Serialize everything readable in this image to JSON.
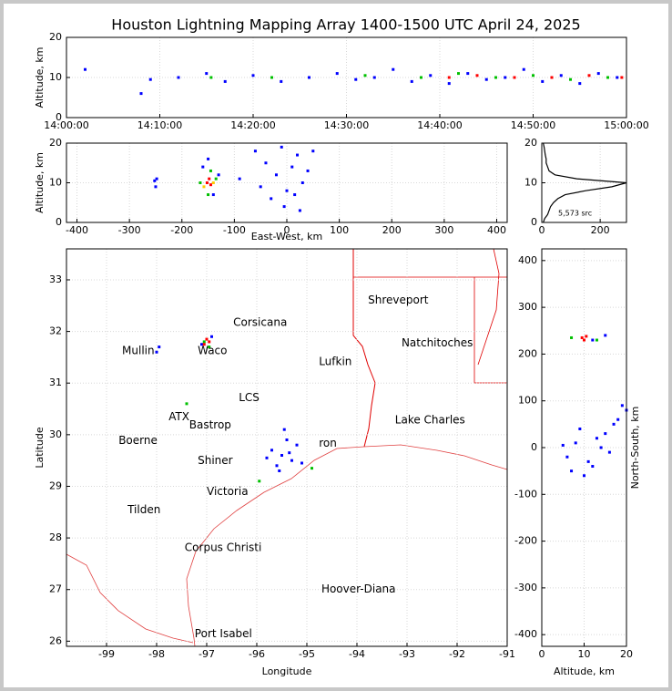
{
  "title": "Houston Lightning Mapping Array 1400-1500 UTC April 24, 2025",
  "chart_data": [
    {
      "type": "scatter",
      "xlim": [
        0,
        60
      ],
      "ylim": [
        0,
        20
      ],
      "xticks": [
        {
          "value": 0,
          "label": "14:00:00"
        },
        {
          "value": 10,
          "label": "14:10:00"
        },
        {
          "value": 20,
          "label": "14:20:00"
        },
        {
          "value": 30,
          "label": "14:30:00"
        },
        {
          "value": 40,
          "label": "14:40:00"
        },
        {
          "value": 50,
          "label": "14:50:00"
        },
        {
          "value": 60,
          "label": "15:00:00"
        }
      ],
      "yticks": [
        0,
        10,
        20
      ],
      "ylabel": "Altitude, km",
      "grid": true,
      "series": [
        {
          "color": "#0000ff",
          "x": [
            2,
            8,
            9,
            12,
            15,
            17,
            20,
            23,
            26,
            29,
            31,
            33,
            35,
            37,
            39,
            41,
            43,
            45,
            47,
            49,
            51,
            53,
            55,
            57,
            59
          ],
          "y": [
            12,
            6,
            9.5,
            10,
            11,
            9,
            10.5,
            9,
            10,
            11,
            9.5,
            10,
            12,
            9,
            10.5,
            8.5,
            11,
            9.5,
            10,
            12,
            9,
            10.5,
            8.5,
            11,
            10
          ]
        },
        {
          "color": "#00c000",
          "x": [
            15.5,
            22,
            32,
            38,
            42,
            46,
            50,
            54,
            58
          ],
          "y": [
            10,
            10,
            10.5,
            10,
            11,
            10,
            10.5,
            9.5,
            10
          ]
        },
        {
          "color": "#ff0000",
          "x": [
            41,
            44,
            48,
            52,
            56,
            59.5
          ],
          "y": [
            10,
            10.5,
            10,
            10,
            10.5,
            10
          ]
        }
      ]
    },
    {
      "type": "scatter",
      "xlim": [
        -420,
        420
      ],
      "ylim": [
        0,
        20
      ],
      "xticks": [
        -400,
        -300,
        -200,
        -100,
        0,
        100,
        200,
        300,
        400
      ],
      "yticks": [
        0,
        10,
        20
      ],
      "xlabel": "East-West, km",
      "ylabel": "Altitude, km",
      "grid": true,
      "series": [
        {
          "color": "#0000ff",
          "x": [
            -250,
            -252,
            -248,
            -160,
            -140,
            -150,
            -130,
            -90,
            -60,
            -40,
            -20,
            -10,
            0,
            10,
            20,
            30,
            40,
            -30,
            -5,
            50,
            -50,
            15,
            25
          ],
          "y": [
            9,
            10.5,
            11,
            14,
            7,
            16,
            12,
            11,
            18,
            15,
            12,
            19,
            8,
            14,
            17,
            10,
            13,
            6,
            4,
            18,
            9,
            7,
            3
          ]
        },
        {
          "color": "#00c000",
          "x": [
            -165,
            -135,
            -150,
            -145
          ],
          "y": [
            10,
            11,
            7,
            13
          ]
        },
        {
          "color": "#ffcc00",
          "x": [
            -158,
            -140
          ],
          "y": [
            9,
            10
          ]
        },
        {
          "color": "#ff0000",
          "x": [
            -152,
            -148,
            -145
          ],
          "y": [
            10,
            11,
            9.5
          ]
        }
      ]
    },
    {
      "type": "line",
      "xlim": [
        0,
        290
      ],
      "ylim": [
        0,
        20
      ],
      "xticks": [
        0,
        200
      ],
      "yticks": [
        0,
        10,
        20
      ],
      "annotation": "5,573 src",
      "grid": true,
      "color": "#000000",
      "x": [
        5,
        10,
        20,
        25,
        30,
        40,
        55,
        80,
        150,
        240,
        290,
        120,
        45,
        25,
        20,
        15,
        15,
        12,
        10,
        8,
        5
      ],
      "y": [
        0,
        1,
        2,
        3,
        4,
        5,
        6,
        7,
        8,
        9,
        10,
        11,
        12,
        13,
        14,
        15,
        16,
        17,
        18,
        19,
        20
      ]
    },
    {
      "type": "map",
      "xlim": [
        -99.8,
        -91
      ],
      "ylim": [
        25.9,
        33.6
      ],
      "xticks": [
        -99,
        -98,
        -97,
        -96,
        -95,
        -94,
        -93,
        -92,
        -91
      ],
      "yticks": [
        26,
        27,
        28,
        29,
        30,
        31,
        32,
        33
      ],
      "xlabel": "Longitude",
      "ylabel": "Latitude",
      "grid": true,
      "series": [
        {
          "color": "#0000ff",
          "x": [
            -98.0,
            -97.95,
            -97.1,
            -96.9,
            -95.5,
            -95.3,
            -95.7,
            -95.4,
            -95.6,
            -95.2,
            -95.8,
            -95.45,
            -95.1,
            -95.55,
            -95.35
          ],
          "y": [
            31.6,
            31.7,
            31.75,
            31.9,
            29.6,
            29.5,
            29.7,
            29.9,
            29.4,
            29.8,
            29.55,
            30.1,
            29.45,
            29.3,
            29.65
          ]
        },
        {
          "color": "#00c000",
          "x": [
            -97.4,
            -95.95,
            -94.9,
            -97.05,
            -96.95
          ],
          "y": [
            30.6,
            29.1,
            29.35,
            31.8,
            31.7
          ]
        },
        {
          "color": "#ff0000",
          "x": [
            -97.0,
            -96.95,
            -97.05
          ],
          "y": [
            31.85,
            31.8,
            31.75
          ]
        }
      ],
      "places": [
        {
          "text": "Corsicana",
          "x": -96.47,
          "y": 32.17,
          "color": "#000000"
        },
        {
          "text": "Shreveport",
          "x": -93.78,
          "y": 32.6,
          "color": "#000000"
        },
        {
          "text": "Natchitoches",
          "x": -93.11,
          "y": 31.77,
          "color": "#000000"
        },
        {
          "text": "Waco",
          "x": -97.18,
          "y": 31.62,
          "color": "#000000"
        },
        {
          "text": "Mullin",
          "x": -98.69,
          "y": 31.62,
          "color": "#f08040"
        },
        {
          "text": "Lufkin",
          "x": -94.76,
          "y": 31.41,
          "color": "#000000"
        },
        {
          "text": "LCS",
          "x": -96.36,
          "y": 30.71,
          "color": "#000000"
        },
        {
          "text": "ATX",
          "x": -97.76,
          "y": 30.34,
          "color": "#f08040"
        },
        {
          "text": "Bastrop",
          "x": -97.35,
          "y": 30.18,
          "color": "#000000"
        },
        {
          "text": "Lake Charles",
          "x": -93.24,
          "y": 30.28,
          "color": "#000000"
        },
        {
          "text": "Boerne",
          "x": -98.76,
          "y": 29.88,
          "color": "#000000"
        },
        {
          "text": "ron",
          "x": -94.76,
          "y": 29.83,
          "color": "#f0a020"
        },
        {
          "text": "Shiner",
          "x": -97.18,
          "y": 29.49,
          "color": "#000000"
        },
        {
          "text": "Victoria",
          "x": -97.0,
          "y": 28.89,
          "color": "#000000"
        },
        {
          "text": "Tilden",
          "x": -98.58,
          "y": 28.54,
          "color": "#000000"
        },
        {
          "text": "Corpus Christi",
          "x": -97.44,
          "y": 27.81,
          "color": "#000000"
        },
        {
          "text": "Hoover-Diana",
          "x": -94.71,
          "y": 27.0,
          "color": "#0000cc"
        },
        {
          "text": "Port Isabel",
          "x": -97.24,
          "y": 26.14,
          "color": "#000000"
        }
      ]
    },
    {
      "type": "scatter",
      "xlim": [
        0,
        20
      ],
      "ylim": [
        -425,
        425
      ],
      "xticks": [
        0,
        10,
        20
      ],
      "yticks": [
        -400,
        -300,
        -200,
        -100,
        0,
        100,
        200,
        300,
        400
      ],
      "xlabel": "Altitude, km",
      "ylabel": "North-South, km",
      "grid": true,
      "series": [
        {
          "color": "#0000ff",
          "x": [
            6,
            8,
            12,
            15,
            18,
            19,
            10,
            14,
            16,
            9,
            11,
            13,
            17,
            7,
            20,
            5,
            12,
            15
          ],
          "y": [
            -20,
            10,
            -40,
            30,
            60,
            90,
            -60,
            0,
            -10,
            40,
            -30,
            20,
            50,
            -50,
            80,
            5,
            230,
            240
          ]
        },
        {
          "color": "#00c000",
          "x": [
            7,
            13
          ],
          "y": [
            235,
            230
          ]
        },
        {
          "color": "#ff0000",
          "x": [
            9.5,
            10.5,
            10
          ],
          "y": [
            235,
            238,
            230
          ]
        }
      ]
    }
  ]
}
